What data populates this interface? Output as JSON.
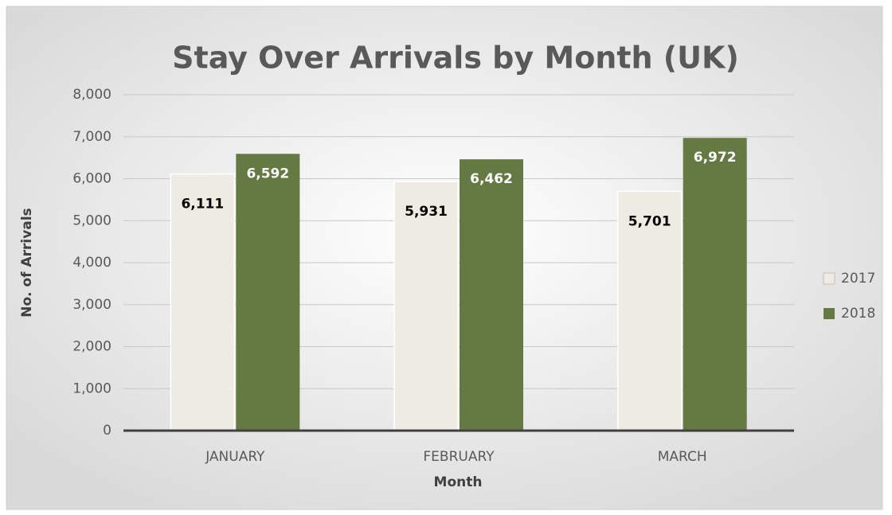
{
  "chart_data": {
    "type": "bar",
    "title": "Stay Over Arrivals by Month (UK)",
    "x_label": "Month",
    "y_label": "No. of Arrivals",
    "categories": [
      "JANUARY",
      "FEBRUARY",
      "MARCH"
    ],
    "series": [
      {
        "name": "2017",
        "color": "#eeebe3",
        "values": [
          6111,
          5931,
          5701
        ],
        "value_labels": [
          "6,111",
          "5,931",
          "5,701"
        ]
      },
      {
        "name": "2018",
        "color": "#647a42",
        "values": [
          6592,
          6462,
          6972
        ],
        "value_labels": [
          "6,592",
          "6,462",
          "6,972"
        ]
      }
    ],
    "ylim": [
      0,
      8000
    ],
    "yticks": [
      0,
      {
        "value": 1000,
        "label": "1,000"
      },
      {
        "value": 2000,
        "label": "2,000"
      },
      {
        "value": 3000,
        "label": "3,000"
      },
      {
        "value": 4000,
        "label": "4,000"
      },
      {
        "value": 5000,
        "label": "5,000"
      },
      {
        "value": 6000,
        "label": "6,000"
      },
      {
        "value": 7000,
        "label": "7,000"
      },
      {
        "value": 8000,
        "label": "8,000"
      }
    ],
    "grid": true,
    "legend": "right"
  }
}
